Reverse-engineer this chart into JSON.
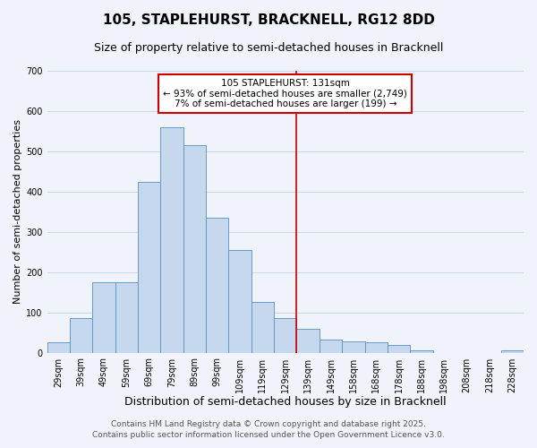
{
  "title": "105, STAPLEHURST, BRACKNELL, RG12 8DD",
  "subtitle": "Size of property relative to semi-detached houses in Bracknell",
  "xlabel": "Distribution of semi-detached houses by size in Bracknell",
  "ylabel": "Number of semi-detached properties",
  "bar_labels": [
    "29sqm",
    "39sqm",
    "49sqm",
    "59sqm",
    "69sqm",
    "79sqm",
    "89sqm",
    "99sqm",
    "109sqm",
    "119sqm",
    "129sqm",
    "139sqm",
    "149sqm",
    "158sqm",
    "168sqm",
    "178sqm",
    "188sqm",
    "198sqm",
    "208sqm",
    "218sqm",
    "228sqm"
  ],
  "bar_values": [
    25,
    85,
    175,
    175,
    425,
    560,
    515,
    335,
    255,
    125,
    85,
    60,
    32,
    27,
    25,
    20,
    5,
    0,
    0,
    0,
    5
  ],
  "bar_color": "#c5d8ee",
  "bar_edgecolor": "#6699cc",
  "background_color": "#f0f4fa",
  "grid_color": "#c8d8ea",
  "vline_x_index": 10,
  "vline_color": "#cc0000",
  "annotation_title": "105 STAPLEHURST: 131sqm",
  "annotation_line1": "← 93% of semi-detached houses are smaller (2,749)",
  "annotation_line2": "7% of semi-detached houses are larger (199) →",
  "annotation_box_edgecolor": "#cc0000",
  "ylim": [
    0,
    700
  ],
  "yticks": [
    0,
    100,
    200,
    300,
    400,
    500,
    600,
    700
  ],
  "footer1": "Contains HM Land Registry data © Crown copyright and database right 2025.",
  "footer2": "Contains public sector information licensed under the Open Government Licence v3.0.",
  "title_fontsize": 11,
  "subtitle_fontsize": 9,
  "xlabel_fontsize": 9,
  "ylabel_fontsize": 8,
  "tick_fontsize": 7,
  "annotation_fontsize": 7.5,
  "footer_fontsize": 6.5
}
